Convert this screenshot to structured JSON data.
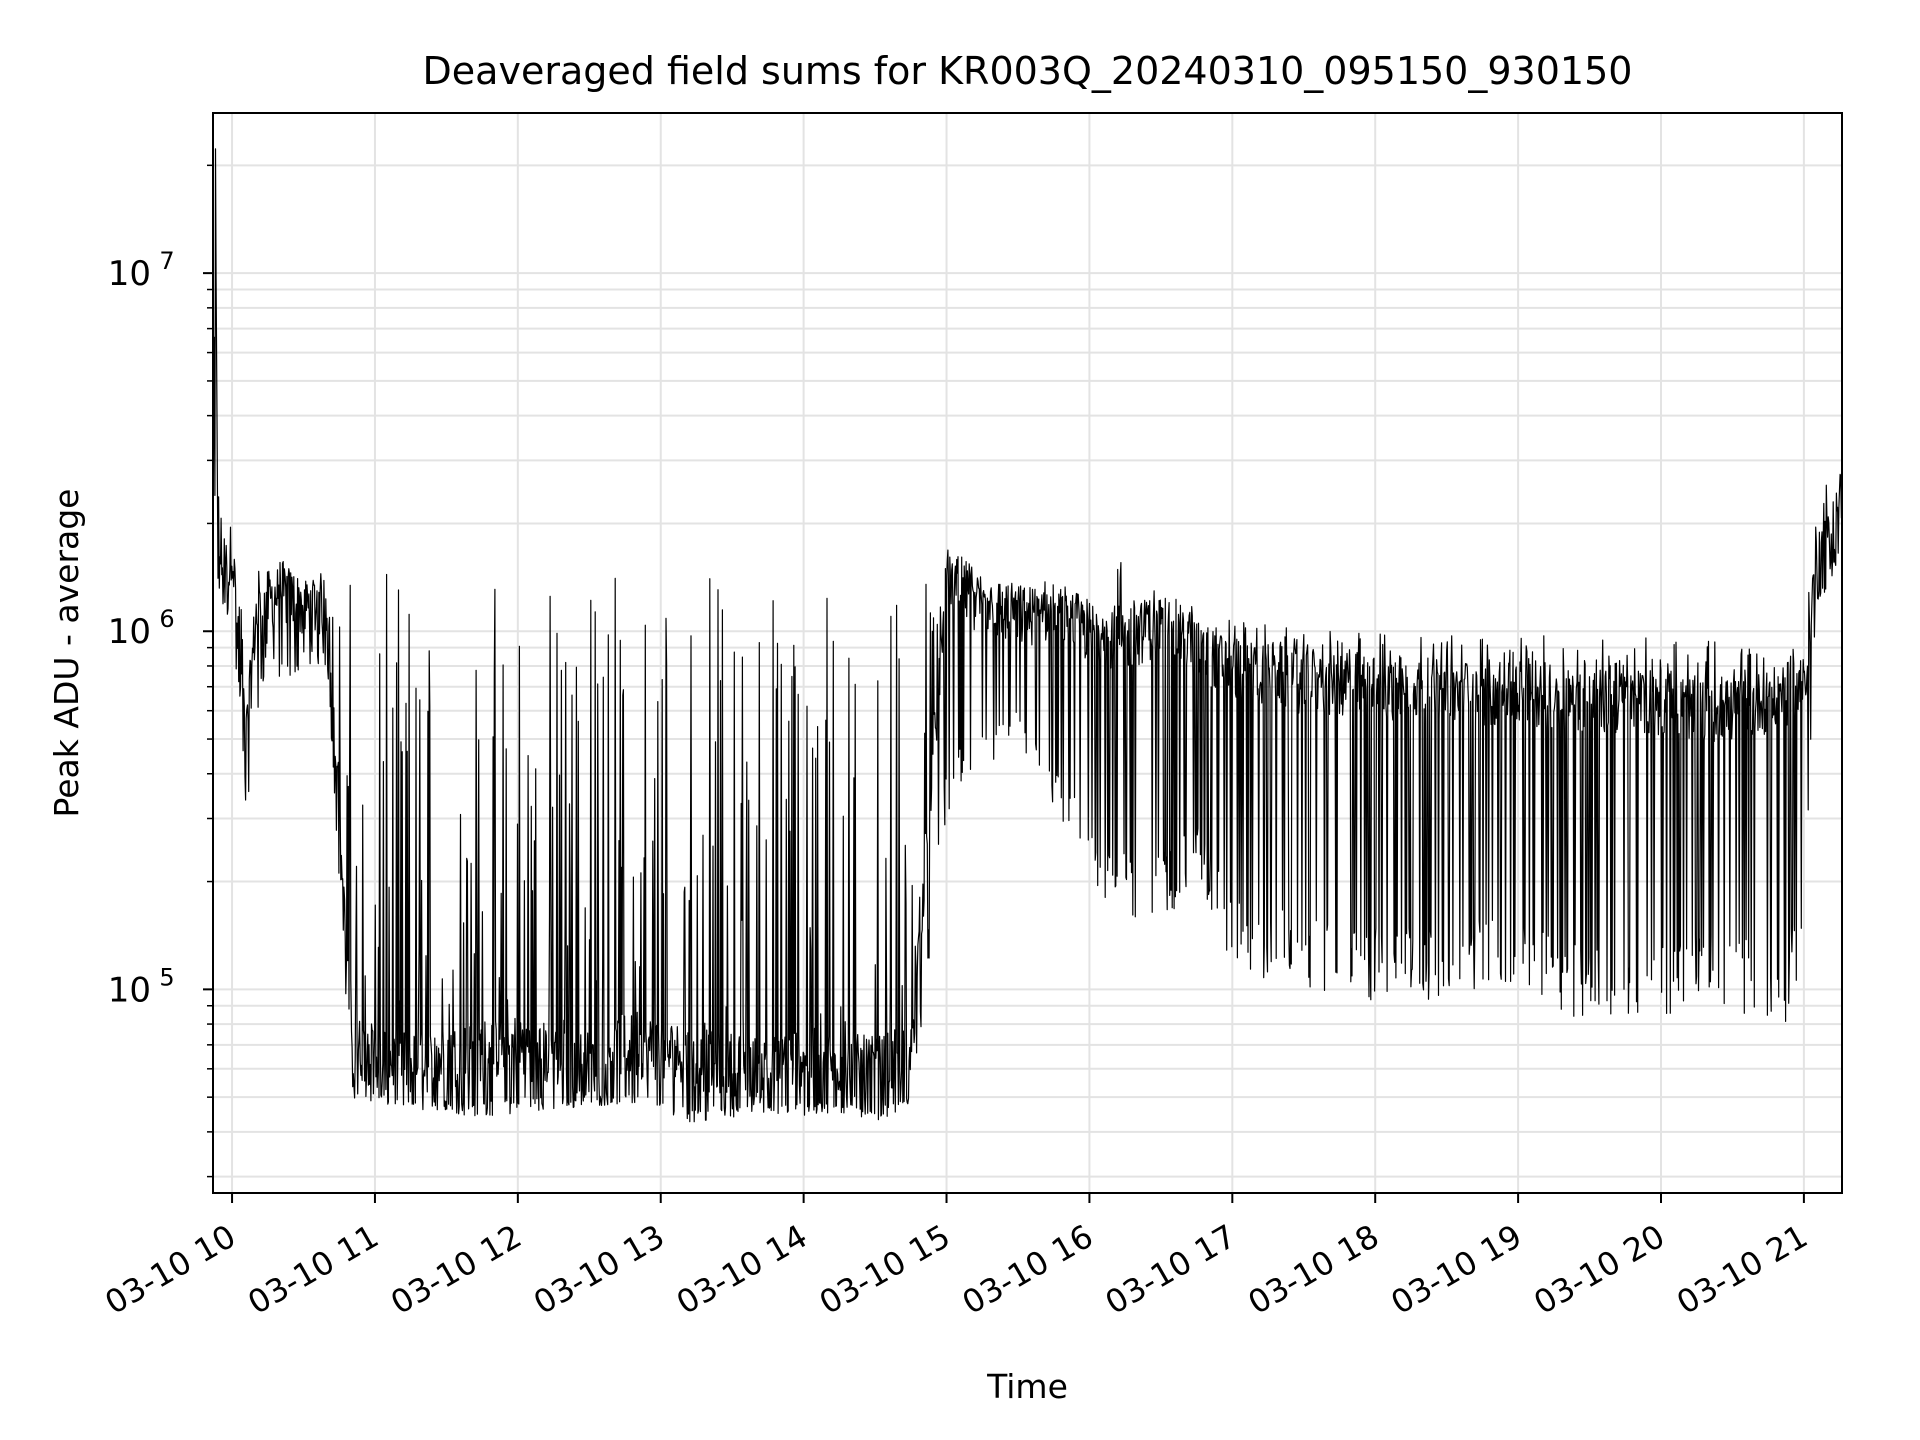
{
  "chart_data": {
    "type": "line",
    "title": "Deaveraged field sums for KR003Q_20240310_095150_930150",
    "xlabel": "Time",
    "ylabel": "Peak ADU - average",
    "yscale": "log",
    "ylim": [
      27000,
      28000000
    ],
    "xlim": [
      "2024-03-10 09:52",
      "2024-03-10 21:16"
    ],
    "grid": true,
    "line_color": "#000000",
    "x_ticks": [
      {
        "value": "2024-03-10 10:00",
        "label": "03-10 10"
      },
      {
        "value": "2024-03-10 11:00",
        "label": "03-10 11"
      },
      {
        "value": "2024-03-10 12:00",
        "label": "03-10 12"
      },
      {
        "value": "2024-03-10 13:00",
        "label": "03-10 13"
      },
      {
        "value": "2024-03-10 14:00",
        "label": "03-10 14"
      },
      {
        "value": "2024-03-10 15:00",
        "label": "03-10 15"
      },
      {
        "value": "2024-03-10 16:00",
        "label": "03-10 16"
      },
      {
        "value": "2024-03-10 17:00",
        "label": "03-10 17"
      },
      {
        "value": "2024-03-10 18:00",
        "label": "03-10 18"
      },
      {
        "value": "2024-03-10 19:00",
        "label": "03-10 19"
      },
      {
        "value": "2024-03-10 20:00",
        "label": "03-10 20"
      },
      {
        "value": "2024-03-10 21:00",
        "label": "03-10 21"
      }
    ],
    "y_ticks": [
      {
        "value": 100000,
        "label": "10",
        "exp": "5"
      },
      {
        "value": 1000000,
        "label": "10",
        "exp": "6"
      },
      {
        "value": 10000000,
        "label": "10",
        "exp": "7"
      }
    ],
    "series": [
      {
        "x": [
          "2024-03-10 09:52",
          "2024-03-10 09:53",
          "2024-03-10 09:54",
          "2024-03-10 09:56",
          "2024-03-10 09:58",
          "2024-03-10 10:00",
          "2024-03-10 10:03",
          "2024-03-10 10:06",
          "2024-03-10 10:10",
          "2024-03-10 10:15",
          "2024-03-10 10:20",
          "2024-03-10 10:30",
          "2024-03-10 10:40",
          "2024-03-10 10:50",
          "2024-03-10 11:00",
          "2024-03-10 11:15",
          "2024-03-10 11:30",
          "2024-03-10 11:45",
          "2024-03-10 12:00",
          "2024-03-10 12:15",
          "2024-03-10 12:30",
          "2024-03-10 12:45",
          "2024-03-10 13:00",
          "2024-03-10 13:15",
          "2024-03-10 13:30",
          "2024-03-10 13:45",
          "2024-03-10 14:00",
          "2024-03-10 14:15",
          "2024-03-10 14:30",
          "2024-03-10 14:45",
          "2024-03-10 15:00",
          "2024-03-10 15:15",
          "2024-03-10 15:30",
          "2024-03-10 15:45",
          "2024-03-10 16:00",
          "2024-03-10 16:15",
          "2024-03-10 16:30",
          "2024-03-10 16:45",
          "2024-03-10 17:00",
          "2024-03-10 17:30",
          "2024-03-10 18:00",
          "2024-03-10 18:30",
          "2024-03-10 19:00",
          "2024-03-10 19:30",
          "2024-03-10 20:00",
          "2024-03-10 20:30",
          "2024-03-10 20:50",
          "2024-03-10 21:00",
          "2024-03-10 21:05",
          "2024-03-10 21:10",
          "2024-03-10 21:15"
        ],
        "y": [
          1500000,
          22000000,
          2000000,
          1400000,
          1300000,
          1800000,
          800000,
          500000,
          1100000,
          1200000,
          1300000,
          1150000,
          1200000,
          70000,
          65000,
          62000,
          64000,
          68000,
          70000,
          65000,
          62000,
          70000,
          68000,
          64000,
          62000,
          60000,
          66000,
          62000,
          60000,
          65000,
          1400000,
          1200000,
          1100000,
          1150000,
          1000000,
          950000,
          1050000,
          900000,
          800000,
          720000,
          700000,
          680000,
          660000,
          640000,
          620000,
          600000,
          650000,
          700000,
          1500000,
          1700000,
          2300000
        ],
        "y_spike_min": [
          1500000,
          1500000,
          1300000,
          1200000,
          1000000,
          800000,
          700000,
          300000,
          500000,
          900000,
          700000,
          800000,
          800000,
          50000,
          48000,
          46000,
          45000,
          44000,
          45000,
          46000,
          47000,
          48000,
          46000,
          42000,
          44000,
          45000,
          44000,
          45000,
          43000,
          46000,
          300000,
          400000,
          500000,
          300000,
          200000,
          150000,
          150000,
          200000,
          110000,
          100000,
          90000,
          95000,
          100000,
          80000,
          85000,
          90000,
          70000,
          120000,
          1200000,
          1300000,
          1600000
        ],
        "y_spike_max": [
          2500000,
          22000000,
          2600000,
          2000000,
          3700000,
          2000000,
          1500000,
          1300000,
          1700000,
          1500000,
          1500000,
          1450000,
          1450000,
          1500000,
          1450000,
          1450000,
          1450000,
          1500000,
          1450000,
          1500000,
          1450000,
          1500000,
          1450000,
          1450000,
          1450000,
          1450000,
          1400000,
          1400000,
          1450000,
          1450000,
          1500000,
          1400000,
          1350000,
          1300000,
          1200000,
          1700000,
          1250000,
          1200000,
          1100000,
          1000000,
          1000000,
          990000,
          980000,
          970000,
          960000,
          950000,
          990000,
          1000000,
          2600000,
          2700000,
          2900000
        ]
      }
    ]
  }
}
